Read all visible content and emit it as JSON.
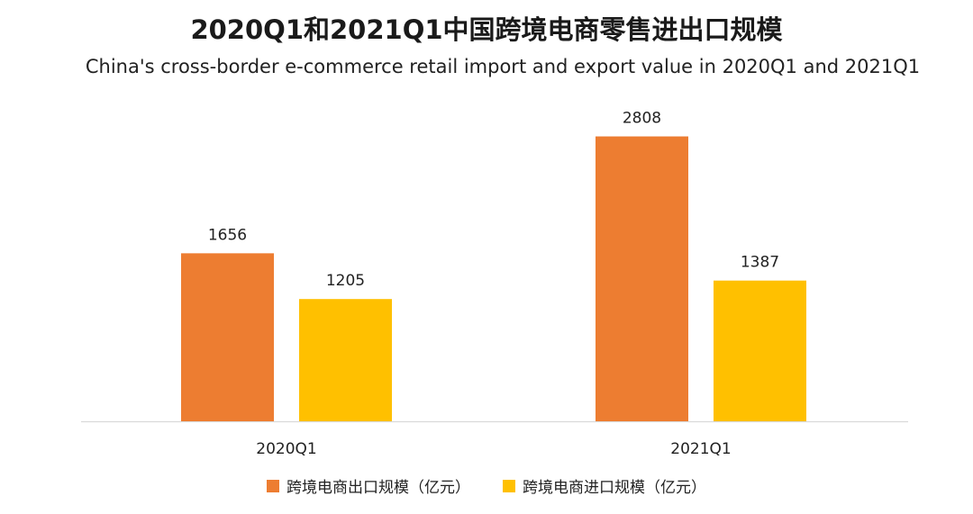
{
  "title": "2020Q1和2021Q1中国跨境电商零售进出口规模",
  "subtitle": "China's cross-border e-commerce retail import and export value in 2020Q1 and 2021Q1",
  "colors": {
    "export": "#ED7D31",
    "import": "#FFC000",
    "axis": "#D9D9D9"
  },
  "chart_data": {
    "type": "bar",
    "title": "2020Q1和2021Q1中国跨境电商零售进出口规模",
    "subtitle": "China's cross-border e-commerce retail import and export value in 2020Q1 and 2021Q1",
    "categories": [
      "2020Q1",
      "2021Q1"
    ],
    "series": [
      {
        "name": "跨境电商出口规模（亿元）",
        "values": [
          1656,
          2808
        ]
      },
      {
        "name": "跨境电商进口规模（亿元）",
        "values": [
          1205,
          1387
        ]
      }
    ],
    "xlabel": "",
    "ylabel": "",
    "ylim": [
      0,
      3000
    ],
    "grid": false,
    "legend_position": "bottom",
    "data_labels": true
  }
}
